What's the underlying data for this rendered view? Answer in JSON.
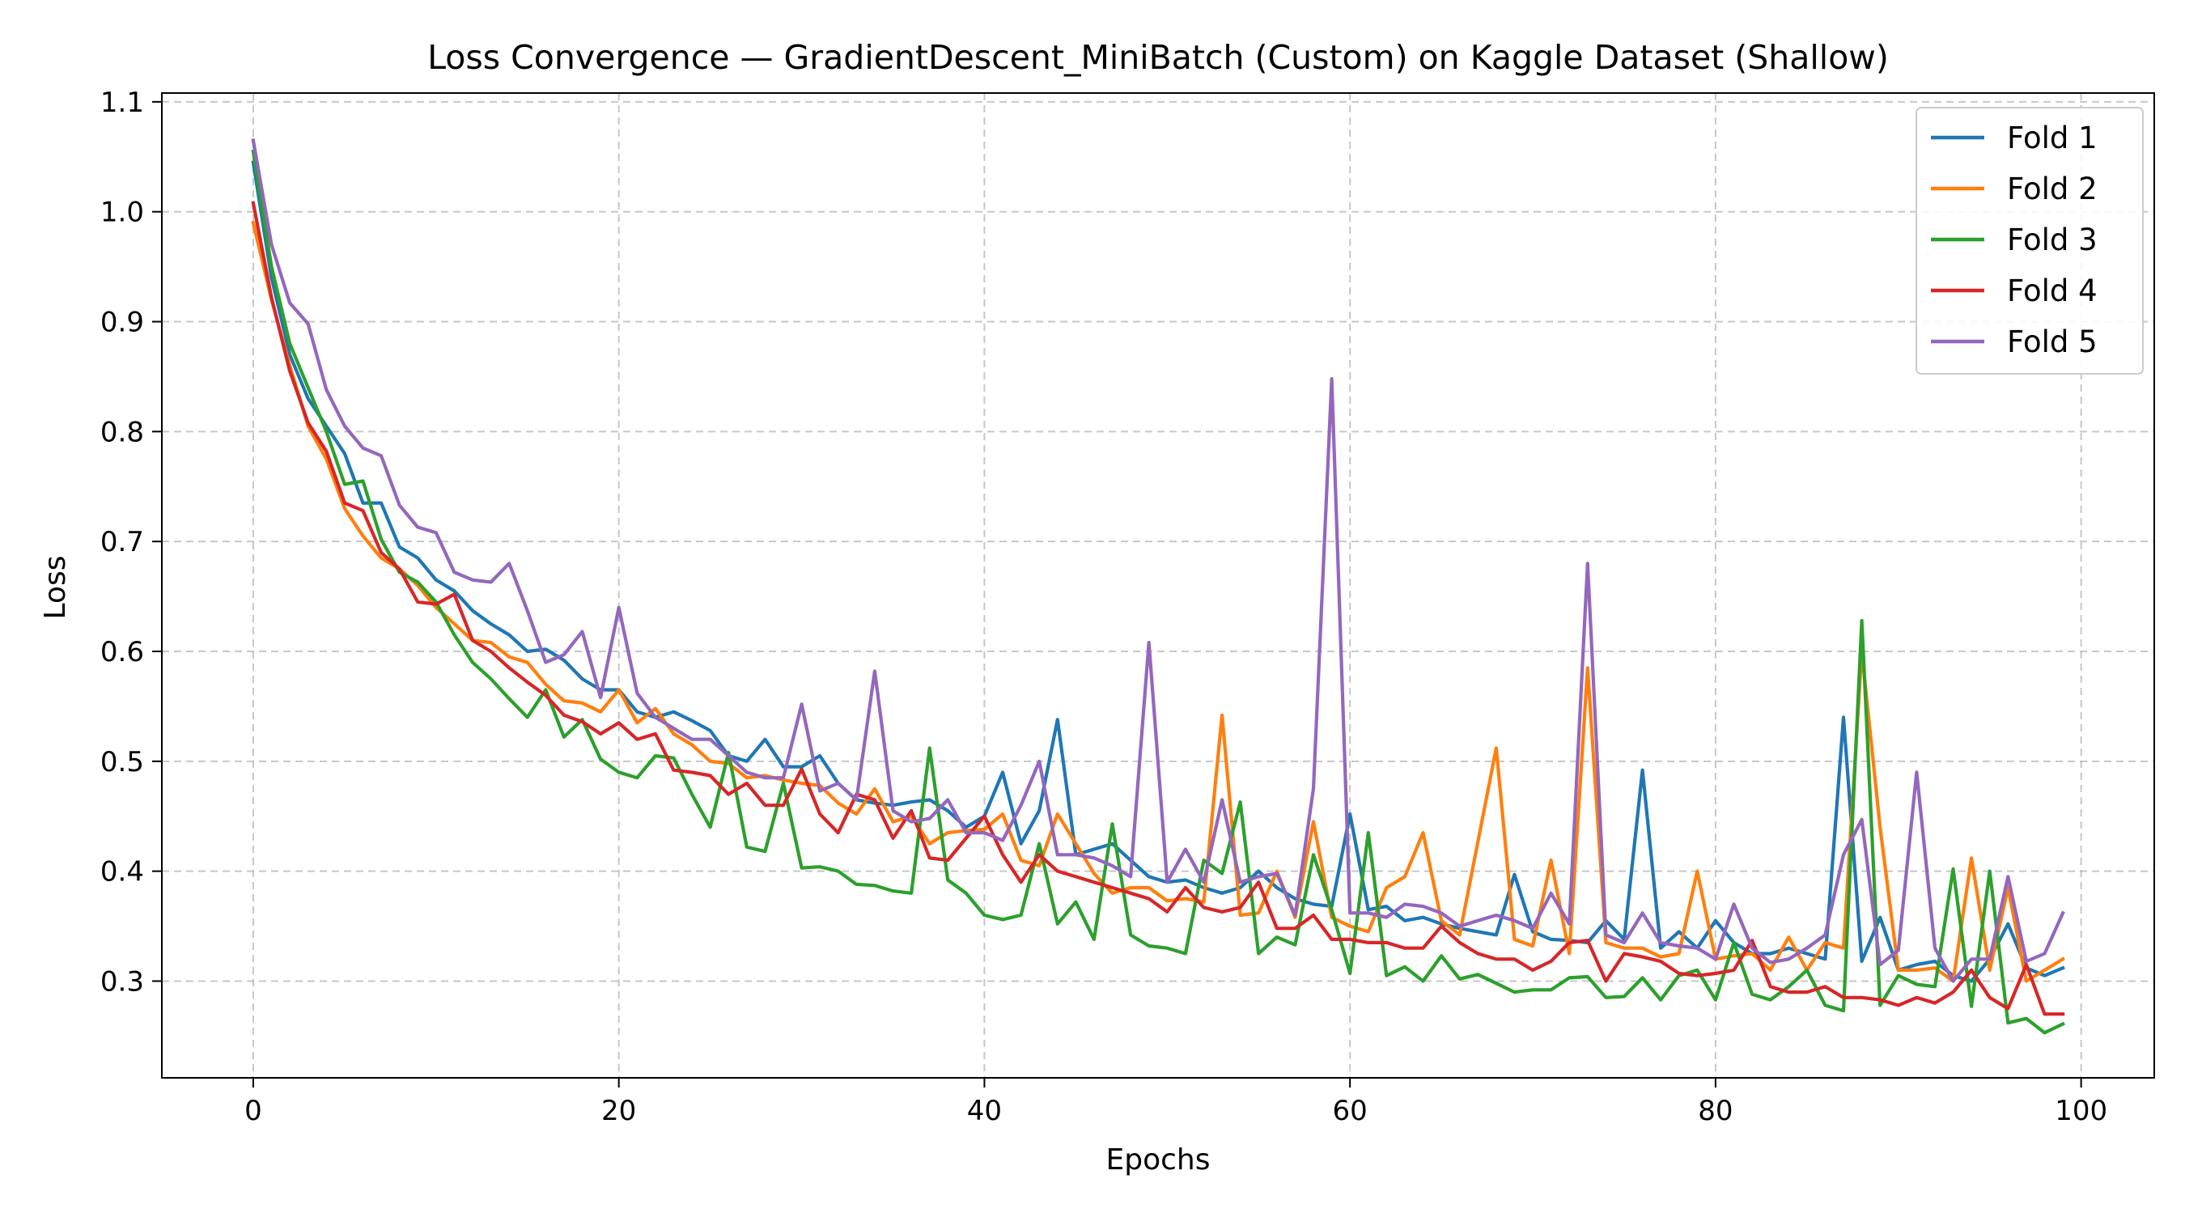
{
  "chart_data": {
    "type": "line",
    "title": "Loss Convergence — GradientDescent_MiniBatch (Custom) on Kaggle Dataset (Shallow)",
    "xlabel": "Epochs",
    "ylabel": "Loss",
    "xlim": [
      -5,
      104
    ],
    "ylim": [
      0.212,
      1.108
    ],
    "x_ticks": [
      0,
      20,
      40,
      60,
      80,
      100
    ],
    "y_ticks": [
      0.3,
      0.4,
      0.5,
      0.6,
      0.7,
      0.8,
      0.9,
      1.0,
      1.1
    ],
    "x_tick_labels": [
      "0",
      "20",
      "40",
      "60",
      "80",
      "100"
    ],
    "y_tick_labels": [
      "0.3",
      "0.4",
      "0.5",
      "0.6",
      "0.7",
      "0.8",
      "0.9",
      "1.0",
      "1.1"
    ],
    "grid": true,
    "legend_position": "top-right",
    "x_start": 0,
    "series": [
      {
        "name": "Fold 1",
        "color": "#1f77b4",
        "values": [
          1.045,
          0.94,
          0.87,
          0.83,
          0.805,
          0.78,
          0.735,
          0.735,
          0.695,
          0.685,
          0.665,
          0.655,
          0.637,
          0.625,
          0.615,
          0.6,
          0.602,
          0.592,
          0.575,
          0.565,
          0.565,
          0.545,
          0.54,
          0.545,
          0.537,
          0.528,
          0.505,
          0.5,
          0.52,
          0.495,
          0.495,
          0.505,
          0.48,
          0.465,
          0.462,
          0.46,
          0.463,
          0.465,
          0.455,
          0.44,
          0.45,
          0.49,
          0.425,
          0.455,
          0.538,
          0.415,
          0.42,
          0.425,
          0.41,
          0.395,
          0.39,
          0.392,
          0.385,
          0.38,
          0.385,
          0.4,
          0.385,
          0.375,
          0.37,
          0.368,
          0.452,
          0.365,
          0.368,
          0.355,
          0.358,
          0.352,
          0.348,
          0.345,
          0.342,
          0.397,
          0.345,
          0.338,
          0.337,
          0.335,
          0.355,
          0.338,
          0.492,
          0.33,
          0.345,
          0.33,
          0.355,
          0.335,
          0.325,
          0.325,
          0.33,
          0.325,
          0.32,
          0.54,
          0.318,
          0.358,
          0.31,
          0.315,
          0.318,
          0.305,
          0.3,
          0.32,
          0.352,
          0.312,
          0.305,
          0.312
        ]
      },
      {
        "name": "Fold 2",
        "color": "#ff7f0e",
        "values": [
          0.99,
          0.92,
          0.86,
          0.805,
          0.775,
          0.73,
          0.705,
          0.685,
          0.675,
          0.66,
          0.64,
          0.625,
          0.61,
          0.608,
          0.595,
          0.59,
          0.57,
          0.555,
          0.553,
          0.545,
          0.565,
          0.535,
          0.548,
          0.525,
          0.515,
          0.5,
          0.498,
          0.485,
          0.487,
          0.483,
          0.48,
          0.478,
          0.462,
          0.452,
          0.475,
          0.445,
          0.45,
          0.425,
          0.435,
          0.437,
          0.438,
          0.452,
          0.41,
          0.405,
          0.452,
          0.425,
          0.398,
          0.38,
          0.385,
          0.385,
          0.373,
          0.375,
          0.372,
          0.542,
          0.36,
          0.362,
          0.4,
          0.358,
          0.445,
          0.358,
          0.35,
          0.345,
          0.385,
          0.395,
          0.435,
          0.355,
          0.342,
          0.427,
          0.512,
          0.338,
          0.332,
          0.41,
          0.325,
          0.585,
          0.335,
          0.33,
          0.33,
          0.322,
          0.325,
          0.4,
          0.32,
          0.323,
          0.325,
          0.31,
          0.34,
          0.31,
          0.335,
          0.33,
          0.6,
          0.44,
          0.31,
          0.31,
          0.312,
          0.3,
          0.412,
          0.31,
          0.385,
          0.3,
          0.31,
          0.32
        ]
      },
      {
        "name": "Fold 3",
        "color": "#2ca02c",
        "values": [
          1.055,
          0.95,
          0.88,
          0.84,
          0.8,
          0.752,
          0.755,
          0.702,
          0.672,
          0.663,
          0.645,
          0.615,
          0.59,
          0.575,
          0.557,
          0.54,
          0.565,
          0.522,
          0.538,
          0.502,
          0.49,
          0.485,
          0.505,
          0.503,
          0.47,
          0.44,
          0.508,
          0.422,
          0.418,
          0.48,
          0.403,
          0.404,
          0.4,
          0.388,
          0.387,
          0.382,
          0.38,
          0.512,
          0.392,
          0.38,
          0.36,
          0.356,
          0.36,
          0.425,
          0.352,
          0.372,
          0.338,
          0.443,
          0.342,
          0.332,
          0.33,
          0.325,
          0.41,
          0.398,
          0.463,
          0.325,
          0.34,
          0.333,
          0.415,
          0.365,
          0.307,
          0.435,
          0.305,
          0.313,
          0.3,
          0.323,
          0.302,
          0.306,
          0.298,
          0.29,
          0.292,
          0.292,
          0.303,
          0.304,
          0.285,
          0.286,
          0.303,
          0.283,
          0.305,
          0.31,
          0.283,
          0.335,
          0.288,
          0.283,
          0.295,
          0.31,
          0.278,
          0.273,
          0.628,
          0.278,
          0.305,
          0.297,
          0.295,
          0.402,
          0.277,
          0.4,
          0.262,
          0.266,
          0.253,
          0.261
        ]
      },
      {
        "name": "Fold 4",
        "color": "#d62728",
        "values": [
          1.008,
          0.922,
          0.855,
          0.808,
          0.782,
          0.735,
          0.728,
          0.69,
          0.675,
          0.645,
          0.643,
          0.652,
          0.61,
          0.6,
          0.585,
          0.572,
          0.56,
          0.542,
          0.536,
          0.525,
          0.535,
          0.52,
          0.525,
          0.492,
          0.49,
          0.487,
          0.47,
          0.48,
          0.46,
          0.46,
          0.493,
          0.452,
          0.435,
          0.47,
          0.465,
          0.43,
          0.455,
          0.412,
          0.41,
          0.43,
          0.45,
          0.415,
          0.39,
          0.415,
          0.4,
          0.395,
          0.39,
          0.385,
          0.38,
          0.375,
          0.363,
          0.385,
          0.367,
          0.363,
          0.367,
          0.39,
          0.348,
          0.348,
          0.36,
          0.338,
          0.338,
          0.335,
          0.335,
          0.33,
          0.33,
          0.35,
          0.335,
          0.325,
          0.32,
          0.32,
          0.31,
          0.318,
          0.335,
          0.337,
          0.3,
          0.325,
          0.322,
          0.318,
          0.307,
          0.305,
          0.307,
          0.31,
          0.337,
          0.295,
          0.29,
          0.29,
          0.295,
          0.285,
          0.285,
          0.283,
          0.278,
          0.285,
          0.28,
          0.29,
          0.31,
          0.285,
          0.275,
          0.315,
          0.27,
          0.27
        ]
      },
      {
        "name": "Fold 5",
        "color": "#9467bd",
        "values": [
          1.065,
          0.97,
          0.917,
          0.898,
          0.838,
          0.805,
          0.785,
          0.778,
          0.733,
          0.713,
          0.708,
          0.672,
          0.665,
          0.663,
          0.68,
          0.637,
          0.59,
          0.597,
          0.618,
          0.558,
          0.64,
          0.562,
          0.54,
          0.53,
          0.52,
          0.52,
          0.505,
          0.49,
          0.485,
          0.485,
          0.552,
          0.473,
          0.48,
          0.465,
          0.582,
          0.455,
          0.445,
          0.448,
          0.465,
          0.435,
          0.435,
          0.428,
          0.46,
          0.5,
          0.415,
          0.415,
          0.412,
          0.405,
          0.395,
          0.608,
          0.39,
          0.42,
          0.39,
          0.465,
          0.39,
          0.395,
          0.398,
          0.36,
          0.475,
          0.848,
          0.362,
          0.362,
          0.358,
          0.37,
          0.368,
          0.362,
          0.35,
          0.355,
          0.36,
          0.355,
          0.348,
          0.38,
          0.352,
          0.68,
          0.342,
          0.335,
          0.362,
          0.335,
          0.332,
          0.33,
          0.32,
          0.37,
          0.33,
          0.317,
          0.32,
          0.33,
          0.342,
          0.415,
          0.447,
          0.315,
          0.328,
          0.49,
          0.33,
          0.3,
          0.32,
          0.32,
          0.395,
          0.318,
          0.325,
          0.362
        ]
      }
    ]
  }
}
